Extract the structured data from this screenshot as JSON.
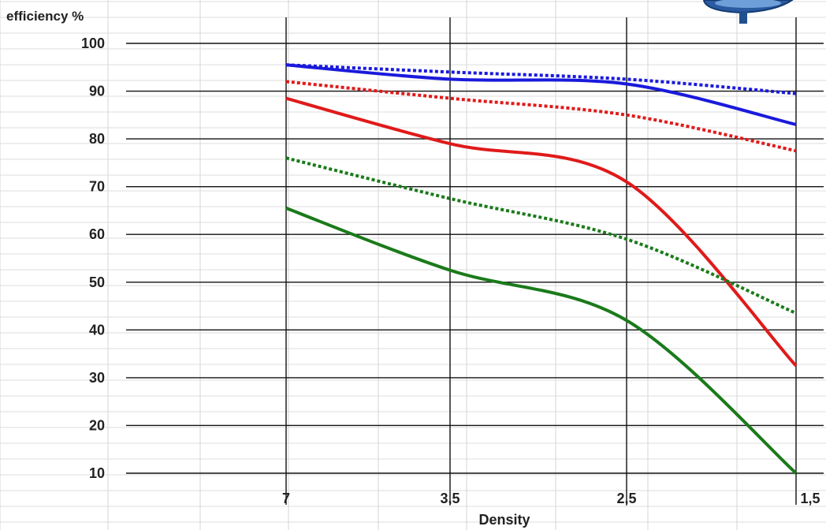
{
  "chart_data": {
    "type": "line",
    "title": "",
    "ylabel": "efficiency %",
    "xlabel": "Density",
    "ylim": [
      10,
      100
    ],
    "yticks": [
      "10",
      "20",
      "30",
      "40",
      "50",
      "60",
      "70",
      "80",
      "90",
      "100"
    ],
    "x": [
      "7",
      "3,5",
      "2,5",
      "1,5"
    ],
    "grid": true,
    "legend": "none",
    "series": [
      {
        "color": "#1a1adc",
        "style": "solid",
        "values": [
          95.5,
          92.5,
          91.5,
          83
        ]
      },
      {
        "color": "#1a1adc",
        "style": "dotted",
        "values": [
          95.5,
          94,
          92.5,
          89.5
        ]
      },
      {
        "color": "#e01a1a",
        "style": "solid",
        "values": [
          88.5,
          79,
          71,
          32.5
        ]
      },
      {
        "color": "#e01a1a",
        "style": "dotted",
        "values": [
          92,
          88.5,
          85,
          77.5
        ]
      },
      {
        "color": "#1a7a1a",
        "style": "solid",
        "values": [
          65.5,
          52.5,
          42,
          10
        ]
      },
      {
        "color": "#1a7a1a",
        "style": "dotted",
        "values": [
          76,
          67.5,
          59,
          43.5
        ]
      }
    ]
  },
  "logo": {
    "color": "#2a5aa0",
    "icon": "funnel-logo-icon"
  }
}
